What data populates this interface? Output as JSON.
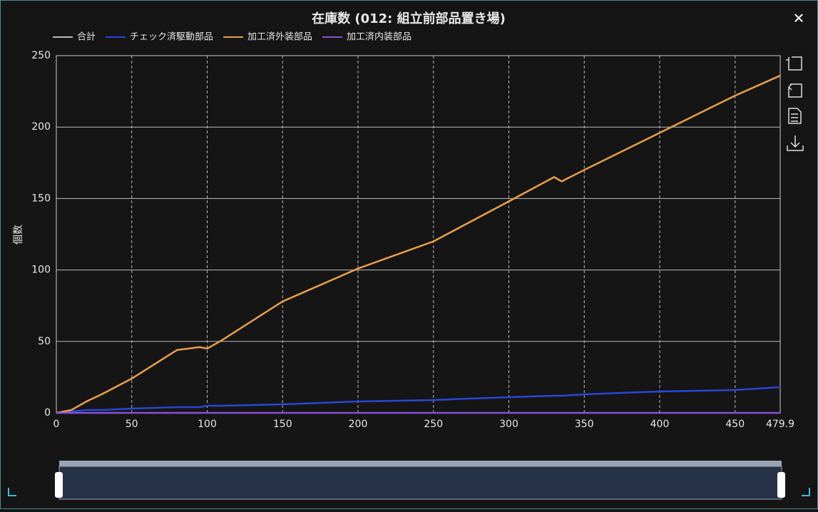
{
  "chart_data": {
    "type": "line",
    "title": "在庫数 (012: 組立前部品置き場)",
    "close_label": "✕",
    "y_label": "個数",
    "x": [
      0,
      10,
      20,
      30,
      50,
      80,
      95,
      100,
      110,
      150,
      200,
      250,
      300,
      330,
      335,
      350,
      400,
      450,
      479.9
    ],
    "xlim": [
      0,
      479.9
    ],
    "xticks": [
      0,
      50,
      100,
      150,
      200,
      250,
      300,
      350,
      400,
      450,
      479.9
    ],
    "ylim": [
      0,
      250
    ],
    "yticks": [
      0,
      50,
      100,
      150,
      200,
      250
    ],
    "grid": true,
    "legend": "top-left",
    "series": [
      {
        "name": "合計",
        "color": "#bbbbbb",
        "visible": false
      },
      {
        "name": "チェック済駆動部品",
        "color": "#2a46d8",
        "values": [
          0,
          1,
          2,
          2,
          3,
          4,
          4,
          5,
          5,
          6,
          8,
          9,
          11,
          12,
          12,
          13,
          15,
          16,
          18
        ]
      },
      {
        "name": "加工済外装部品",
        "color": "#e9a04c",
        "values": [
          0,
          2,
          8,
          13,
          24,
          44,
          46,
          45,
          51,
          78,
          101,
          120,
          148,
          165,
          162,
          170,
          196,
          222,
          236
        ]
      },
      {
        "name": "加工済内装部品",
        "color": "#8a4fd8",
        "values": [
          0,
          0,
          0,
          0,
          0,
          0,
          0,
          0,
          0,
          0,
          0,
          0,
          0,
          0,
          0,
          0,
          0,
          0,
          0
        ]
      }
    ]
  }
}
